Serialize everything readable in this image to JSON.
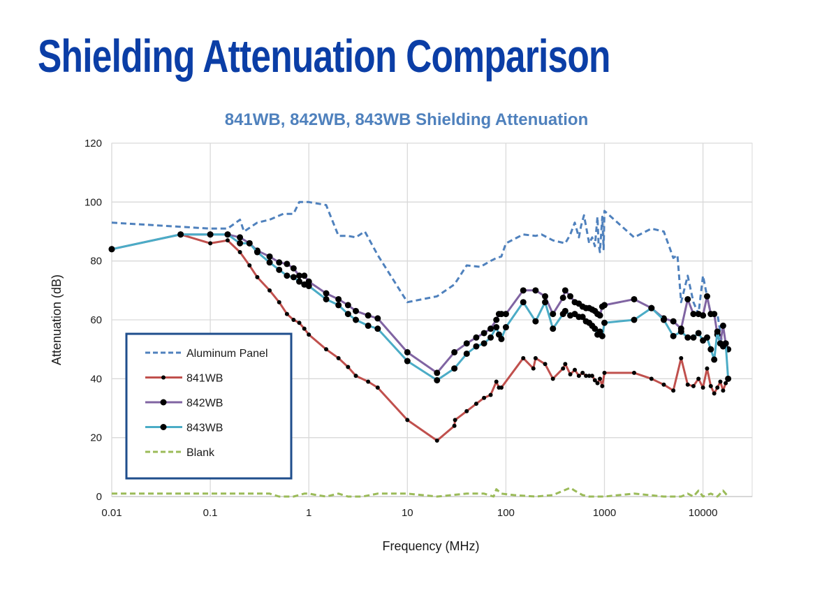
{
  "page": {
    "title": "Shielding Attenuation Comparison",
    "title_color": "#0b3ea6"
  },
  "chart_data": {
    "type": "line",
    "title": "841WB, 842WB, 843WB Shielding Attenuation",
    "xlabel": "Frequency (MHz)",
    "ylabel": "Attenuation (dB)",
    "xscale": "log",
    "xlim": [
      0.01,
      20000
    ],
    "ylim": [
      0,
      120
    ],
    "x_ticks": [
      0.01,
      0.1,
      1,
      10,
      100,
      1000,
      10000
    ],
    "x_tick_labels": [
      "0.01",
      "0.1",
      "1",
      "10",
      "100",
      "1000",
      "10000"
    ],
    "y_ticks": [
      0,
      20,
      40,
      60,
      80,
      100,
      120
    ],
    "y_tick_labels": [
      "0",
      "20",
      "40",
      "60",
      "80",
      "100",
      "120"
    ],
    "grid": true,
    "legend_position": "bottom-left",
    "series": [
      {
        "name": "Aluminum Panel",
        "color": "#4f81bd",
        "style": "dashed",
        "markers": false,
        "x": [
          0.01,
          0.1,
          0.15,
          0.2,
          0.22,
          0.3,
          0.4,
          0.55,
          0.7,
          0.8,
          1,
          1.5,
          2,
          2.5,
          3,
          3.7,
          5,
          10,
          20,
          30,
          40,
          55,
          70,
          80,
          90,
          100,
          150,
          200,
          230,
          300,
          400,
          450,
          500,
          550,
          580,
          620,
          700,
          750,
          800,
          850,
          870,
          900,
          950,
          980,
          1000,
          2000,
          3000,
          4000,
          5000,
          5500,
          6000,
          7000,
          8000,
          9000,
          10000,
          11000,
          12000,
          14000,
          16000,
          18000
        ],
        "y": [
          93,
          91,
          91,
          94,
          90,
          93,
          94,
          96,
          96,
          100,
          100,
          99,
          88.5,
          88.5,
          88,
          90,
          82,
          66,
          68,
          72,
          78.5,
          78,
          80,
          81,
          81.5,
          86,
          89,
          88.5,
          89,
          87,
          86,
          89,
          93,
          88,
          92,
          95.5,
          86,
          88,
          85,
          95,
          86,
          83,
          95,
          84,
          97,
          88,
          91,
          90,
          81,
          82,
          66,
          75,
          66,
          62,
          75,
          68,
          62,
          62,
          50,
          50
        ]
      },
      {
        "name": "841WB",
        "color": "#c0504d",
        "style": "solid",
        "markers": "small",
        "x": [
          0.05,
          0.1,
          0.15,
          0.2,
          0.25,
          0.3,
          0.4,
          0.5,
          0.6,
          0.7,
          0.8,
          0.9,
          1,
          1.5,
          2,
          2.5,
          3,
          4,
          5,
          10,
          20,
          30,
          30.5,
          40,
          50,
          60,
          70,
          80,
          85,
          90,
          150,
          190,
          200,
          250,
          300,
          380,
          400,
          450,
          500,
          550,
          600,
          650,
          700,
          750,
          800,
          850,
          900,
          950,
          1000,
          2000,
          3000,
          4000,
          5000,
          6000,
          7000,
          8000,
          9000,
          10000,
          11000,
          12000,
          13000,
          14000,
          15000,
          16000,
          17000,
          18000
        ],
        "y": [
          89,
          86,
          87,
          83,
          78.5,
          74.5,
          70,
          66,
          62,
          60,
          59,
          57,
          55,
          50,
          47,
          44,
          41,
          39,
          37,
          26,
          19,
          24,
          26,
          29,
          31.5,
          33.5,
          34.5,
          39,
          37,
          37,
          47,
          43.5,
          47,
          45,
          40,
          43.5,
          45,
          41.5,
          43,
          41,
          42,
          41,
          41,
          41,
          39.5,
          38.5,
          40,
          37.5,
          42,
          42,
          40,
          38,
          36,
          47,
          38,
          37.5,
          40,
          37,
          43.5,
          37.5,
          35,
          37,
          39,
          36,
          38.5,
          40
        ]
      },
      {
        "name": "842WB",
        "color": "#8064a2",
        "style": "solid",
        "markers": "large",
        "x": [
          0.01,
          0.05,
          0.1,
          0.15,
          0.2,
          0.25,
          0.3,
          0.4,
          0.5,
          0.6,
          0.7,
          0.8,
          0.9,
          1,
          1.5,
          2,
          2.5,
          3,
          4,
          5,
          10,
          20,
          30,
          40,
          50,
          60,
          70,
          80,
          85,
          90,
          100,
          150,
          200,
          250,
          300,
          380,
          400,
          450,
          500,
          550,
          600,
          650,
          700,
          750,
          800,
          850,
          900,
          950,
          1000,
          2000,
          3000,
          4000,
          5000,
          6000,
          7000,
          8000,
          9000,
          10000,
          11000,
          12000,
          13000,
          14000,
          15000,
          16000,
          17000,
          18000
        ],
        "y": [
          84,
          89,
          89,
          89,
          88,
          86,
          83.5,
          81.5,
          79.5,
          79,
          77.5,
          75,
          75,
          73,
          69,
          67,
          65,
          63,
          61.5,
          60.5,
          49,
          42,
          49,
          52,
          54,
          55.5,
          57,
          60,
          62,
          62,
          62,
          70,
          70,
          68,
          62,
          67.5,
          70,
          68,
          66,
          65.5,
          64.5,
          64,
          64,
          63.5,
          63,
          62,
          61.5,
          64.5,
          65,
          67,
          64,
          60.5,
          59.5,
          57,
          67,
          62,
          62,
          61.5,
          68,
          62,
          62,
          55,
          52,
          58,
          52,
          50
        ]
      },
      {
        "name": "843WB",
        "color": "#4bacc6",
        "style": "solid",
        "markers": "large",
        "x": [
          0.01,
          0.05,
          0.1,
          0.15,
          0.2,
          0.25,
          0.3,
          0.4,
          0.5,
          0.6,
          0.7,
          0.8,
          0.9,
          1,
          1.5,
          2,
          2.5,
          3,
          4,
          5,
          10,
          20,
          30,
          40,
          50,
          60,
          70,
          80,
          85,
          90,
          100,
          150,
          200,
          250,
          300,
          380,
          400,
          450,
          500,
          550,
          600,
          650,
          700,
          750,
          800,
          850,
          900,
          950,
          1000,
          2000,
          3000,
          4000,
          5000,
          6000,
          7000,
          8000,
          9000,
          10000,
          11000,
          12000,
          13000,
          14000,
          15000,
          16000,
          17000,
          18000
        ],
        "y": [
          84,
          89,
          89,
          89,
          86,
          86,
          83,
          79.5,
          77,
          75,
          74.5,
          73,
          72,
          71.5,
          67,
          65,
          62,
          60,
          58,
          57,
          46,
          39.5,
          43.5,
          48.5,
          51,
          52,
          54,
          57.5,
          55,
          53.5,
          57.5,
          66,
          59.5,
          66,
          57,
          62,
          63,
          61.5,
          62,
          61,
          61,
          59.5,
          59,
          58,
          57,
          55,
          56,
          54.5,
          59,
          60,
          64,
          60,
          54.5,
          56,
          54,
          54,
          55.5,
          53,
          54,
          50,
          46.5,
          56,
          52,
          51,
          52,
          40
        ]
      },
      {
        "name": "Blank",
        "color": "#9bbb59",
        "style": "dashed",
        "markers": false,
        "x": [
          0.01,
          0.1,
          0.4,
          0.5,
          0.7,
          0.9,
          1,
          1.2,
          1.5,
          2,
          2.5,
          3.5,
          5,
          10,
          20,
          40,
          60,
          75,
          80,
          90,
          120,
          200,
          300,
          450,
          500,
          600,
          700,
          1000,
          2000,
          4000,
          6000,
          7000,
          8000,
          9000,
          10000,
          12000,
          14000,
          16000,
          18000
        ],
        "y": [
          1,
          1,
          1,
          0,
          0,
          1,
          1,
          0.5,
          0,
          1,
          0,
          0,
          1,
          1,
          0,
          1,
          1,
          0,
          2.5,
          1,
          0.5,
          0,
          0.5,
          3,
          2,
          0.5,
          0,
          0,
          1,
          0,
          0,
          1,
          0,
          2,
          0,
          1,
          0,
          2,
          0
        ]
      }
    ]
  }
}
